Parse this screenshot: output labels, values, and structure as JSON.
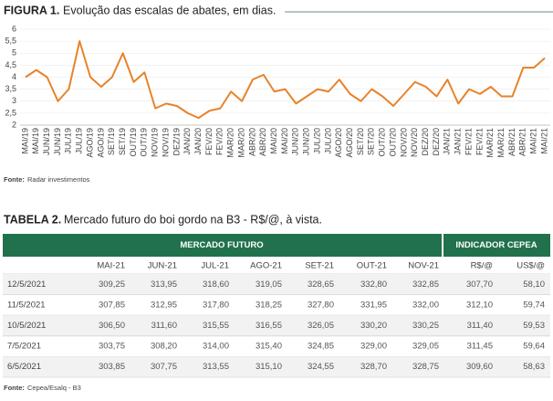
{
  "figure_label": "FIGURA 1.",
  "figure_title": "Evolução das escalas de abates, em dias.",
  "chart_data": {
    "type": "line",
    "categories": [
      "MAI/19",
      "MAI/19",
      "JUN/19",
      "JUN/19",
      "JUL/19",
      "JUL/19",
      "AGO/19",
      "AGO/19",
      "SET/19",
      "SET/19",
      "OUT/19",
      "OUT/19",
      "NOV/19",
      "NOV/19",
      "DEZ/19",
      "JAN/20",
      "JAN/20",
      "FEV/20",
      "FEV/20",
      "MAR/20",
      "MAR/20",
      "ABR/20",
      "ABR/20",
      "MAI/20",
      "MAI/20",
      "JUN/20",
      "JUN/20",
      "JUL/20",
      "JUL/20",
      "AGO/20",
      "AGO/20",
      "SET/20",
      "SET/20",
      "OUT/20",
      "OUT/20",
      "NOV/20",
      "NOV/20",
      "DEZ/20",
      "DEZ/20",
      "JAN/21",
      "JAN/21",
      "FEV/21",
      "FEV/21",
      "MAR/21",
      "MAR/21",
      "ABR/21",
      "ABR/21",
      "MAI/21",
      "MAI/21"
    ],
    "series": [
      {
        "color": "#e8822a",
        "values": [
          4.0,
          4.3,
          4.0,
          3.0,
          3.5,
          5.5,
          4.0,
          3.6,
          4.0,
          5.0,
          3.8,
          4.2,
          2.7,
          2.9,
          2.8,
          2.5,
          2.3,
          2.6,
          2.7,
          3.4,
          3.0,
          3.9,
          4.1,
          3.4,
          3.5,
          2.9,
          3.2,
          3.5,
          3.4,
          3.9,
          3.3,
          3.0,
          3.5,
          3.2,
          2.8,
          3.3,
          3.8,
          3.6,
          3.2,
          3.9,
          2.9,
          3.5,
          3.3,
          3.6,
          3.2,
          3.2,
          4.4,
          4.4,
          4.8
        ]
      }
    ],
    "ylim": [
      2,
      6
    ],
    "yticks": [
      2,
      {
        "value": 2.5,
        "label": "2,5"
      },
      3,
      {
        "value": 3.5,
        "label": "3,5"
      },
      4,
      {
        "value": 4.5,
        "label": "4,5"
      },
      5,
      {
        "value": 5.5,
        "label": "5,5"
      },
      6
    ],
    "grid": true
  },
  "figure_source_label": "Fonte:",
  "figure_source": "Radar investimentos",
  "table_label": "TABELA 2.",
  "table_title": "Mercado futuro do boi gordo na B3 - R$/@, à vista.",
  "table": {
    "groups": [
      "MERCADO FUTURO",
      "INDICADOR CEPEA"
    ],
    "columns": [
      "MAI-21",
      "JUN-21",
      "JUL-21",
      "AGO-21",
      "SET-21",
      "OUT-21",
      "NOV-21",
      "R$/@",
      "US$/@"
    ],
    "rows": [
      [
        "12/5/2021",
        "309,25",
        "313,95",
        "318,60",
        "319,05",
        "328,65",
        "332,80",
        "332,85",
        "307,70",
        "58,10"
      ],
      [
        "11/5/2021",
        "307,85",
        "312,95",
        "317,80",
        "318,25",
        "327,80",
        "331,95",
        "332,00",
        "312,10",
        "59,74"
      ],
      [
        "10/5/2021",
        "306,50",
        "311,60",
        "315,55",
        "316,55",
        "326,05",
        "330,20",
        "330,25",
        "311,40",
        "59,53"
      ],
      [
        "7/5/2021",
        "303,75",
        "308,20",
        "314,00",
        "315,40",
        "324,85",
        "329,00",
        "329,05",
        "311,45",
        "59,64"
      ],
      [
        "6/5/2021",
        "303,85",
        "307,75",
        "313,55",
        "315,10",
        "324,55",
        "328,70",
        "328,75",
        "309,60",
        "58,63"
      ]
    ]
  },
  "table_source_label": "Fonte:",
  "table_source": "Cepea/Esalq - B3"
}
